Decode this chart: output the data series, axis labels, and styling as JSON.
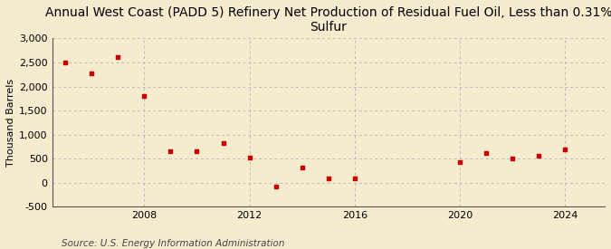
{
  "title": "Annual West Coast (PADD 5) Refinery Net Production of Residual Fuel Oil, Less than 0.31%\nSulfur",
  "ylabel": "Thousand Barrels",
  "source": "Source: U.S. Energy Information Administration",
  "background_color": "#f5ebcf",
  "marker_color": "#cc0000",
  "years": [
    2005,
    2006,
    2007,
    2008,
    2009,
    2010,
    2011,
    2012,
    2013,
    2014,
    2015,
    2016,
    2020,
    2021,
    2022,
    2023,
    2024
  ],
  "values": [
    2510,
    2270,
    2620,
    1800,
    660,
    660,
    820,
    530,
    -70,
    310,
    90,
    100,
    430,
    620,
    510,
    570,
    700
  ],
  "xlim": [
    2004.5,
    2025.5
  ],
  "ylim": [
    -500,
    3000
  ],
  "yticks": [
    -500,
    0,
    500,
    1000,
    1500,
    2000,
    2500,
    3000
  ],
  "xticks": [
    2008,
    2012,
    2016,
    2020,
    2024
  ],
  "grid_color": "#bbbbbb",
  "title_fontsize": 10,
  "tick_fontsize": 8,
  "ylabel_fontsize": 8,
  "source_fontsize": 7.5
}
